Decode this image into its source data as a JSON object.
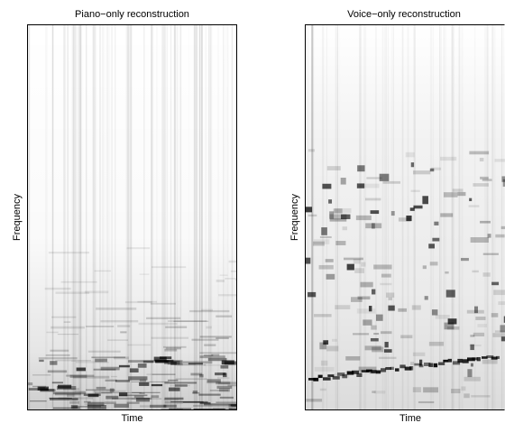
{
  "chart_data": [
    {
      "type": "heatmap",
      "title": "Piano−only reconstruction",
      "xlabel": "Time",
      "ylabel": "Frequency",
      "colormap": "grayscale, dark = high energy",
      "grid": false
    },
    {
      "type": "heatmap",
      "title": "Voice−only reconstruction",
      "xlabel": "Time",
      "ylabel": "Frequency",
      "colormap": "grayscale, dark = high energy",
      "grid": false
    }
  ]
}
